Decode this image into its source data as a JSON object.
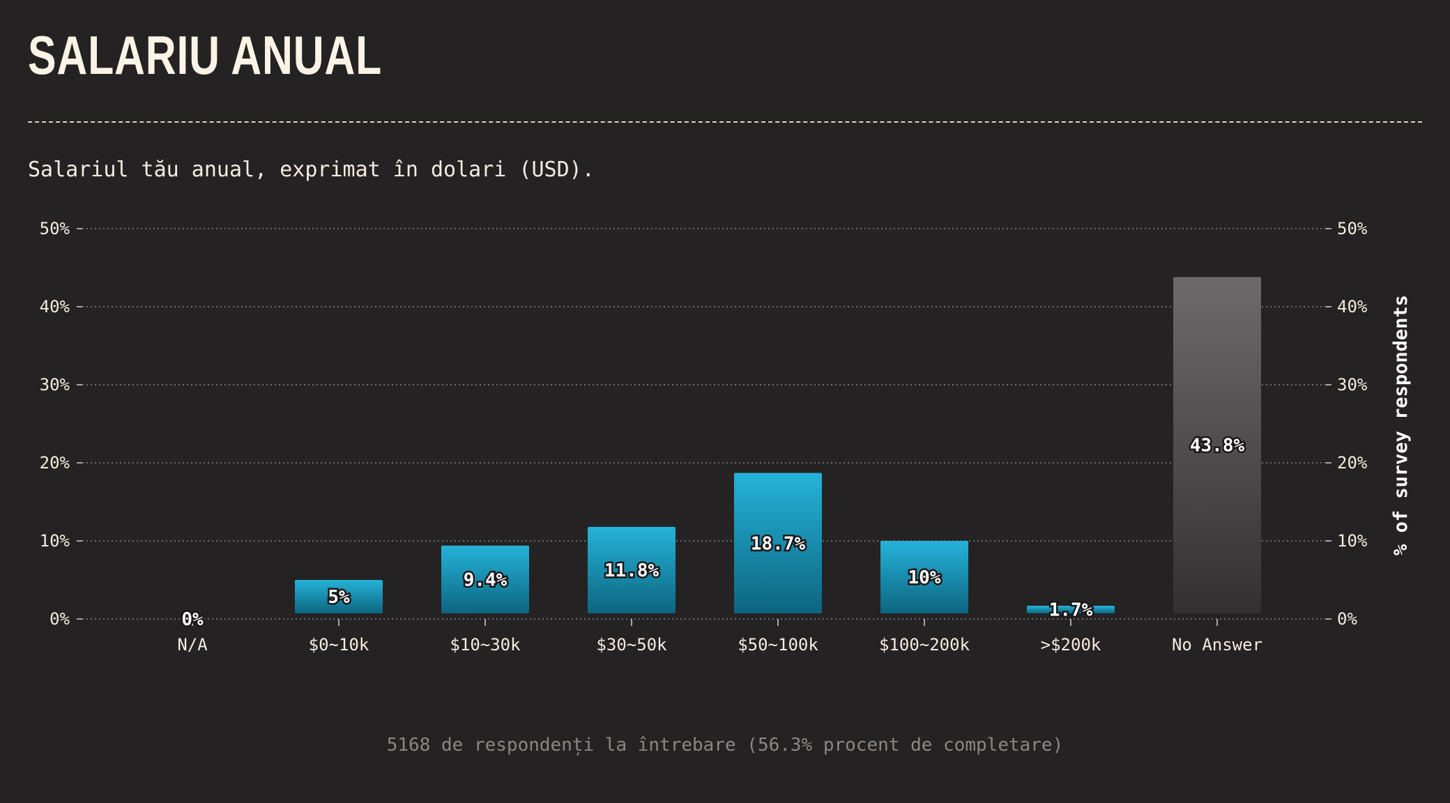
{
  "page": {
    "title": "SALARIU ANUAL",
    "question": "Salariul tău anual, exprimat în dolari (USD).",
    "footer": "5168 de respondenți la întrebare (56.3% procent de completare)"
  },
  "chart_data": {
    "type": "bar",
    "categories": [
      "N/A",
      "$0~10k",
      "$10~30k",
      "$30~50k",
      "$50~100k",
      "$100~200k",
      ">$200k",
      "No Answer"
    ],
    "values": [
      0,
      5,
      9.4,
      11.8,
      18.7,
      10,
      1.7,
      43.8
    ],
    "value_labels": [
      "0%",
      "5%",
      "9.4%",
      "11.8%",
      "18.7%",
      "10%",
      "1.7%",
      "43.8%"
    ],
    "ylim": [
      0,
      50
    ],
    "yticks": [
      0,
      10,
      20,
      30,
      40,
      50
    ],
    "ytick_labels": [
      "0%",
      "10%",
      "20%",
      "30%",
      "40%",
      "50%"
    ],
    "ylabel_right": "% of survey respondents",
    "grid": true,
    "colors": {
      "bar_top": "#25b3d9",
      "bar_bottom": "#0d6580",
      "no_answer_top": "#6c6a6a",
      "no_answer_bottom": "#333031",
      "grid": "#8a8583"
    }
  }
}
